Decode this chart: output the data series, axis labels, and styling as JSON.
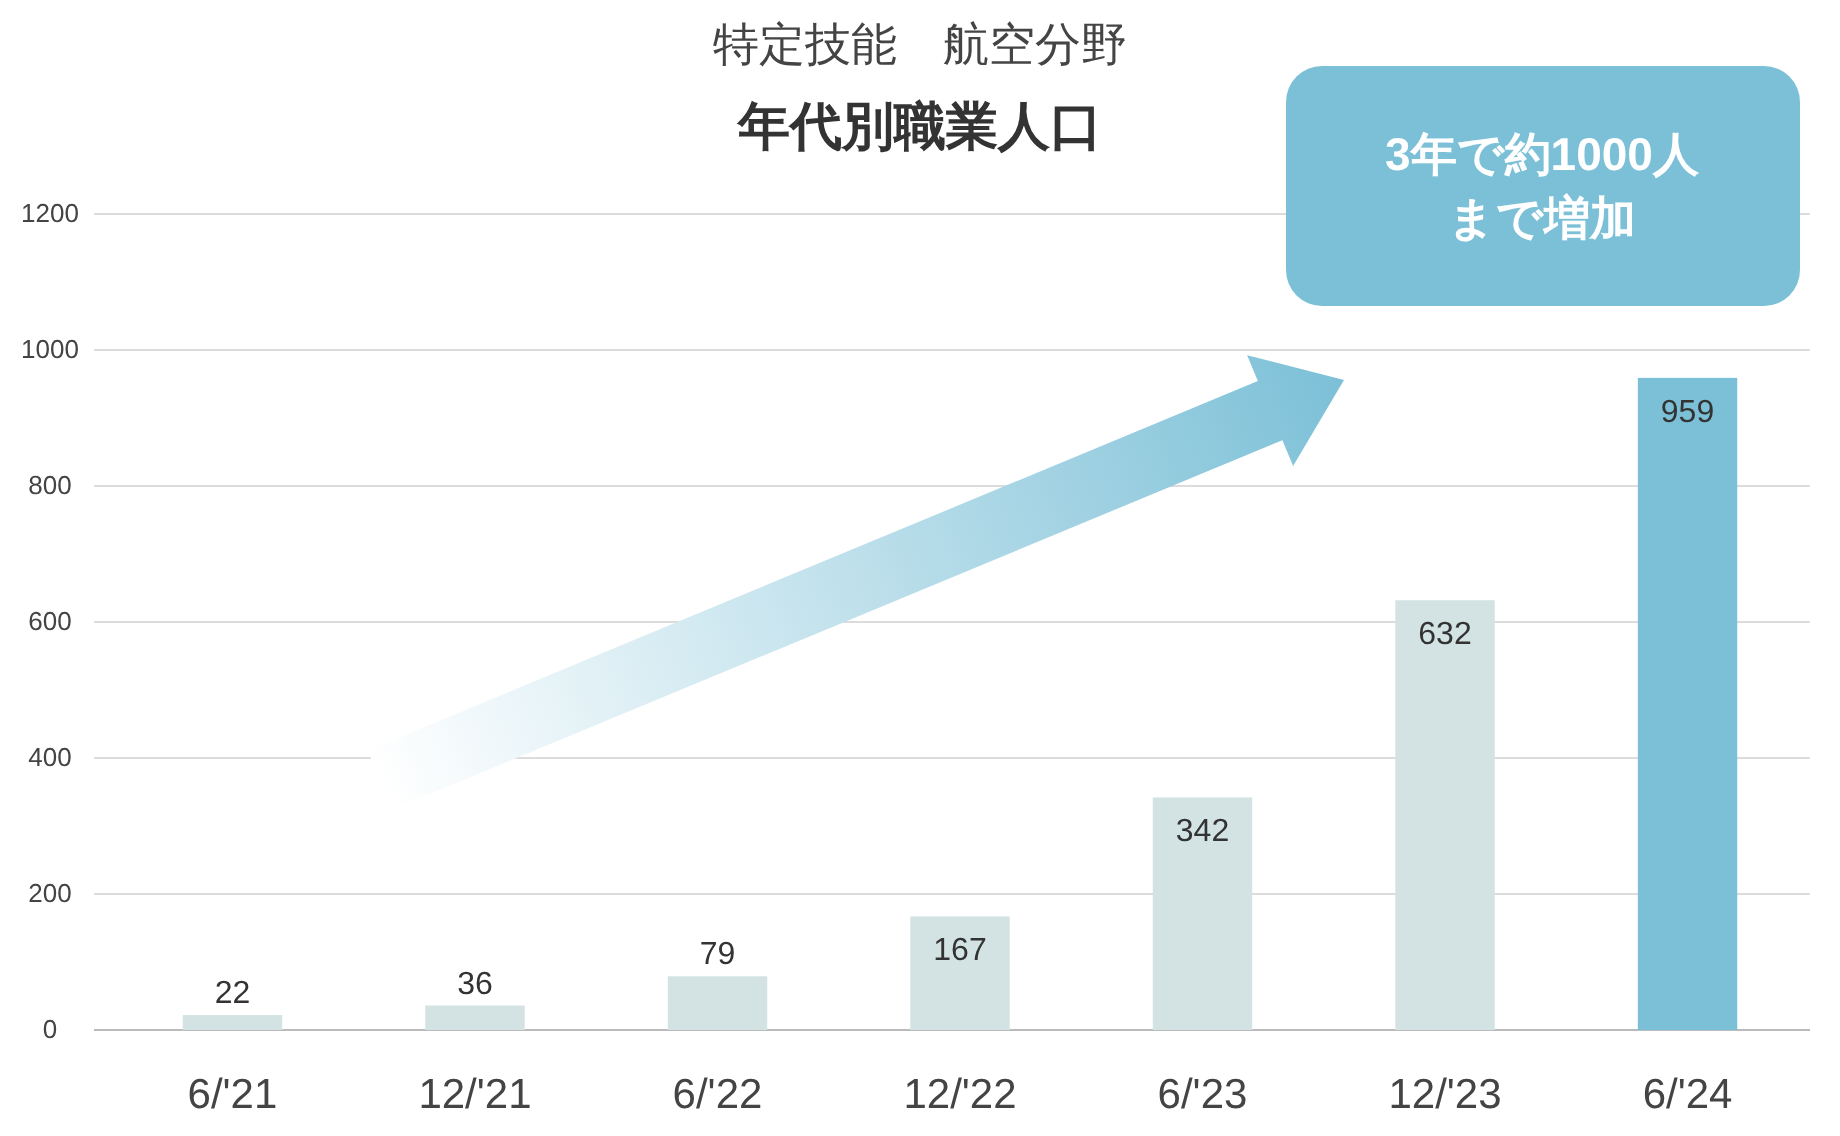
{
  "chart_data": {
    "type": "bar",
    "title": "特定技能　航空分野",
    "subtitle": "年代別職業人口",
    "categories": [
      "6/'21",
      "12/'21",
      "6/'22",
      "12/'22",
      "6/'23",
      "12/'23",
      "6/'24"
    ],
    "values": [
      22,
      36,
      79,
      167,
      342,
      632,
      959
    ],
    "colors": [
      "#d3e3e3",
      "#d3e3e3",
      "#d3e3e3",
      "#d3e3e3",
      "#d3e3e3",
      "#d3e3e3",
      "#7cc0d7"
    ],
    "ylim": [
      0,
      1200
    ],
    "yticks": [
      0,
      200,
      400,
      600,
      800,
      1000,
      1200
    ],
    "grid": "y",
    "data_labels": true,
    "annotations": [
      "3年で約1000人",
      "まで増加"
    ]
  }
}
